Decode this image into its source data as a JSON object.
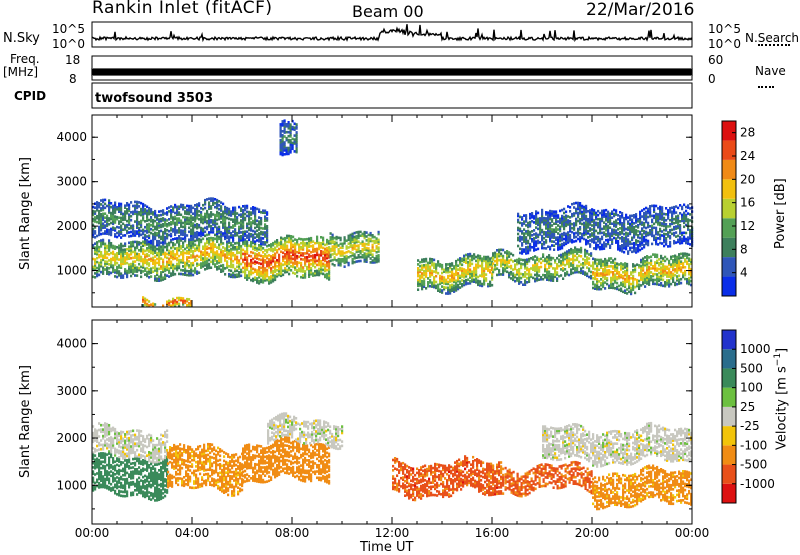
{
  "header": {
    "station": "Rankin Inlet (fitACF)",
    "beam": "Beam 00",
    "date": "22/Mar/2016"
  },
  "noise_panel": {
    "left_label": "N.Sky",
    "left_ticks": [
      "10^5",
      "10^0"
    ],
    "right_ticks": [
      "10^5",
      "10^0"
    ],
    "right_label": "N.Search"
  },
  "freq_panel": {
    "left_label": "Freq.",
    "left_unit": "[MHz]",
    "left_ticks": [
      "18",
      "8"
    ],
    "right_ticks": [
      "60",
      "0"
    ],
    "right_label": "Nave"
  },
  "cpid": {
    "label": "CPID",
    "value": "twofsound 3503"
  },
  "time_axis": {
    "label": "Time UT",
    "ticks": [
      "00:00",
      "04:00",
      "08:00",
      "12:00",
      "16:00",
      "20:00",
      "00:00"
    ]
  },
  "colors": {
    "power": [
      "#0a2ee8",
      "#2f56b8",
      "#3d7f5c",
      "#53a055",
      "#b8d030",
      "#f2c00e",
      "#f08a16",
      "#ea4a18",
      "#dd1010"
    ],
    "velocity": [
      "#2233cc",
      "#2a6d8c",
      "#3a8a5a",
      "#6cc040",
      "#c8c8c0",
      "#f2c40a",
      "#f08c14",
      "#e8501a",
      "#dd1111"
    ]
  },
  "chart_data": [
    {
      "type": "heatmap",
      "title": "",
      "xlabel": "Time UT",
      "ylabel": "Slant Range [km]",
      "xlim": [
        0,
        24
      ],
      "ylim": [
        180,
        4500
      ],
      "x_ticks": [
        "00:00",
        "04:00",
        "08:00",
        "12:00",
        "16:00",
        "20:00",
        "00:00"
      ],
      "y_ticks": [
        1000,
        2000,
        3000,
        4000
      ],
      "colorbar": {
        "label": "Power [dB]",
        "ticks": [
          4,
          8,
          12,
          16,
          20,
          24,
          28
        ],
        "range": [
          0,
          30
        ]
      },
      "bands": [
        {
          "t0": 0,
          "t1": 2,
          "r0": 800,
          "r1": 1600,
          "value": 18
        },
        {
          "t0": 2,
          "t1": 6,
          "r0": 900,
          "r1": 1700,
          "value": 20
        },
        {
          "t0": 6,
          "t1": 9.5,
          "r0": 800,
          "r1": 1700,
          "value": 26
        },
        {
          "t0": 9.5,
          "t1": 11.5,
          "r0": 1200,
          "r1": 1900,
          "value": 18
        },
        {
          "t0": 13,
          "t1": 16,
          "r0": 600,
          "r1": 1300,
          "value": 20
        },
        {
          "t0": 16,
          "t1": 20,
          "r0": 800,
          "r1": 1400,
          "value": 18
        },
        {
          "t0": 20,
          "t1": 24,
          "r0": 600,
          "r1": 1300,
          "value": 20
        },
        {
          "t0": 0,
          "t1": 7,
          "r0": 1700,
          "r1": 2500,
          "value": 10
        },
        {
          "t0": 17,
          "t1": 24,
          "r0": 1500,
          "r1": 2400,
          "value": 8
        },
        {
          "t0": 2,
          "t1": 4,
          "r0": 180,
          "r1": 400,
          "value": 26
        },
        {
          "t0": 7.5,
          "t1": 8.2,
          "r0": 3500,
          "r1": 4300,
          "value": 8
        }
      ]
    },
    {
      "type": "heatmap",
      "title": "",
      "xlabel": "Time UT",
      "ylabel": "Slant Range [km]",
      "xlim": [
        0,
        24
      ],
      "ylim": [
        180,
        4500
      ],
      "x_ticks": [
        "00:00",
        "04:00",
        "08:00",
        "12:00",
        "16:00",
        "20:00",
        "00:00"
      ],
      "y_ticks": [
        1000,
        2000,
        3000,
        4000
      ],
      "colorbar": {
        "label": "Velocity [m s^-1]",
        "ticks": [
          "1000",
          "500",
          "100",
          "25",
          "-25",
          "-100",
          "-500",
          "-1000"
        ],
        "range": [
          1000,
          -1000
        ]
      },
      "bands": [
        {
          "t0": 0,
          "t1": 3,
          "r0": 1600,
          "r1": 2200,
          "value": 0
        },
        {
          "t0": 0,
          "t1": 3,
          "r0": 800,
          "r1": 1600,
          "value": 200
        },
        {
          "t0": 3,
          "t1": 6,
          "r0": 900,
          "r1": 1800,
          "value": -150
        },
        {
          "t0": 6,
          "t1": 9.5,
          "r0": 1100,
          "r1": 1900,
          "value": -250
        },
        {
          "t0": 7,
          "t1": 10,
          "r0": 1900,
          "r1": 2400,
          "value": 0
        },
        {
          "t0": 12,
          "t1": 16.5,
          "r0": 800,
          "r1": 1500,
          "value": -700
        },
        {
          "t0": 16.5,
          "t1": 20,
          "r0": 900,
          "r1": 1400,
          "value": -600
        },
        {
          "t0": 20,
          "t1": 24,
          "r0": 600,
          "r1": 1300,
          "value": -150
        },
        {
          "t0": 18,
          "t1": 24,
          "r0": 1500,
          "r1": 2200,
          "value": 0
        }
      ]
    }
  ]
}
